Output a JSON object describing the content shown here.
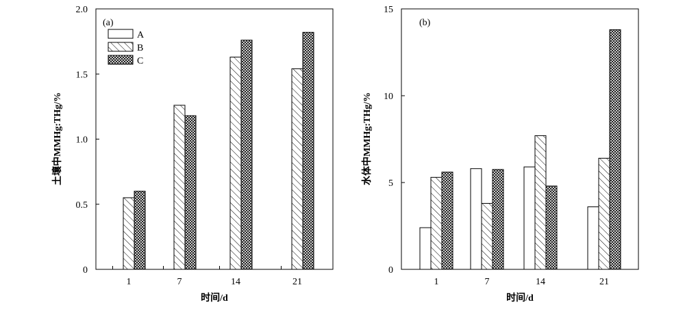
{
  "chart_data": [
    {
      "type": "bar",
      "panel_label": "(a)",
      "categories": [
        "1",
        "7",
        "14",
        "21"
      ],
      "series": [
        {
          "name": "A",
          "values": [
            0,
            0,
            0,
            0
          ]
        },
        {
          "name": "B",
          "values": [
            0.55,
            1.26,
            1.63,
            1.54
          ]
        },
        {
          "name": "C",
          "values": [
            0.6,
            1.18,
            1.76,
            1.82
          ]
        }
      ],
      "xlabel": "时间/d",
      "ylabel": "土壤中MMHg:THg/%",
      "ylim": [
        0,
        2.0
      ],
      "yticks": [
        "0",
        "0.5",
        "1.0",
        "1.5",
        "2.0"
      ],
      "legend": {
        "position": "top-left",
        "entries": [
          "A",
          "B",
          "C"
        ]
      },
      "grid": false
    },
    {
      "type": "bar",
      "panel_label": "(b)",
      "categories": [
        "1",
        "7",
        "14",
        "21"
      ],
      "series": [
        {
          "name": "A",
          "values": [
            2.4,
            5.8,
            5.9,
            3.6
          ]
        },
        {
          "name": "B",
          "values": [
            5.3,
            3.8,
            7.7,
            6.4
          ]
        },
        {
          "name": "C",
          "values": [
            5.6,
            5.75,
            4.8,
            13.8
          ]
        }
      ],
      "xlabel": "时间/d",
      "ylabel": "水体中MMHg:THg/%",
      "ylim": [
        0,
        15
      ],
      "yticks": [
        "0",
        "5",
        "10",
        "15"
      ],
      "grid": false
    }
  ],
  "fills": {
    "A": "#ffffff",
    "B": "hatch-diagonal",
    "C": "crosshatch"
  },
  "colors": {
    "stroke": "#000000",
    "background": "#ffffff"
  }
}
